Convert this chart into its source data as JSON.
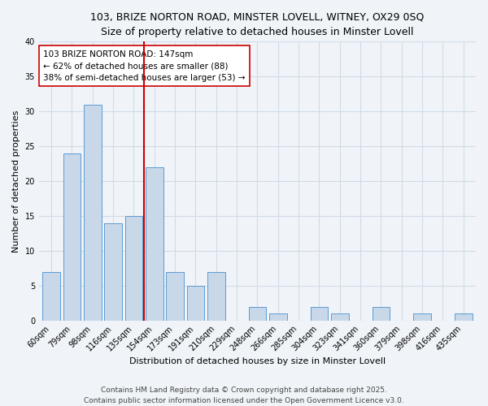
{
  "title": "103, BRIZE NORTON ROAD, MINSTER LOVELL, WITNEY, OX29 0SQ",
  "subtitle": "Size of property relative to detached houses in Minster Lovell",
  "xlabel": "Distribution of detached houses by size in Minster Lovell",
  "ylabel": "Number of detached properties",
  "bar_color": "#c8d8e8",
  "bar_edge_color": "#5b9bd5",
  "background_color": "#f0f4f8",
  "categories": [
    "60sqm",
    "79sqm",
    "98sqm",
    "116sqm",
    "135sqm",
    "154sqm",
    "173sqm",
    "191sqm",
    "210sqm",
    "229sqm",
    "248sqm",
    "266sqm",
    "285sqm",
    "304sqm",
    "323sqm",
    "341sqm",
    "360sqm",
    "379sqm",
    "398sqm",
    "416sqm",
    "435sqm"
  ],
  "values": [
    7,
    24,
    31,
    14,
    15,
    22,
    7,
    5,
    7,
    0,
    2,
    1,
    0,
    2,
    1,
    0,
    2,
    0,
    1,
    0,
    1
  ],
  "ylim": [
    0,
    40
  ],
  "yticks": [
    0,
    5,
    10,
    15,
    20,
    25,
    30,
    35,
    40
  ],
  "vline_position": 4.5,
  "vline_color": "#cc0000",
  "annotation_text": "103 BRIZE NORTON ROAD: 147sqm\n← 62% of detached houses are smaller (88)\n38% of semi-detached houses are larger (53) →",
  "annotation_box_color": "#ffffff",
  "annotation_box_edge": "#cc0000",
  "footer_line1": "Contains HM Land Registry data © Crown copyright and database right 2025.",
  "footer_line2": "Contains public sector information licensed under the Open Government Licence v3.0.",
  "grid_color": "#d0dce8",
  "title_fontsize": 9,
  "axis_label_fontsize": 8,
  "tick_fontsize": 7,
  "annotation_fontsize": 7.5,
  "footer_fontsize": 6.5
}
